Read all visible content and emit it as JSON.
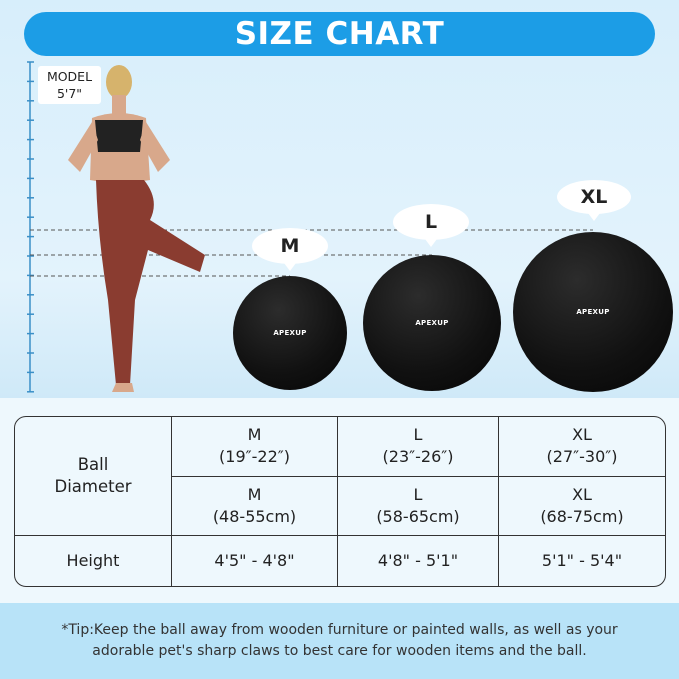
{
  "banner": {
    "title": "SIZE CHART"
  },
  "model": {
    "label": "MODEL",
    "height": "5'7\""
  },
  "balls": [
    {
      "size": "M",
      "brand": "APEXUP"
    },
    {
      "size": "L",
      "brand": "APEXUP"
    },
    {
      "size": "XL",
      "brand": "APEXUP"
    }
  ],
  "table": {
    "row_headers": [
      "Ball Diameter",
      "Height"
    ],
    "diameter_inches": [
      {
        "size": "M",
        "value": "(19″-22″)"
      },
      {
        "size": "L",
        "value": "(23″-26″)"
      },
      {
        "size": "XL",
        "value": "(27″-30″)"
      }
    ],
    "diameter_cm": [
      {
        "size": "M",
        "value": "(48-55cm)"
      },
      {
        "size": "L",
        "value": "(58-65cm)"
      },
      {
        "size": "XL",
        "value": "(68-75cm)"
      }
    ],
    "height": [
      "4'5\" - 4'8\"",
      "4'8\" - 5'1\"",
      "5'1\" - 5'4\""
    ]
  },
  "tip": {
    "line1": "*Tip:Keep the ball away from wooden furniture or painted walls, as well as your",
    "line2": "adorable pet's sharp claws to best care for wooden items and the ball."
  },
  "colors": {
    "banner": "#1c9de6",
    "tip_band": "#b8e3f8",
    "ball": "#111111"
  }
}
